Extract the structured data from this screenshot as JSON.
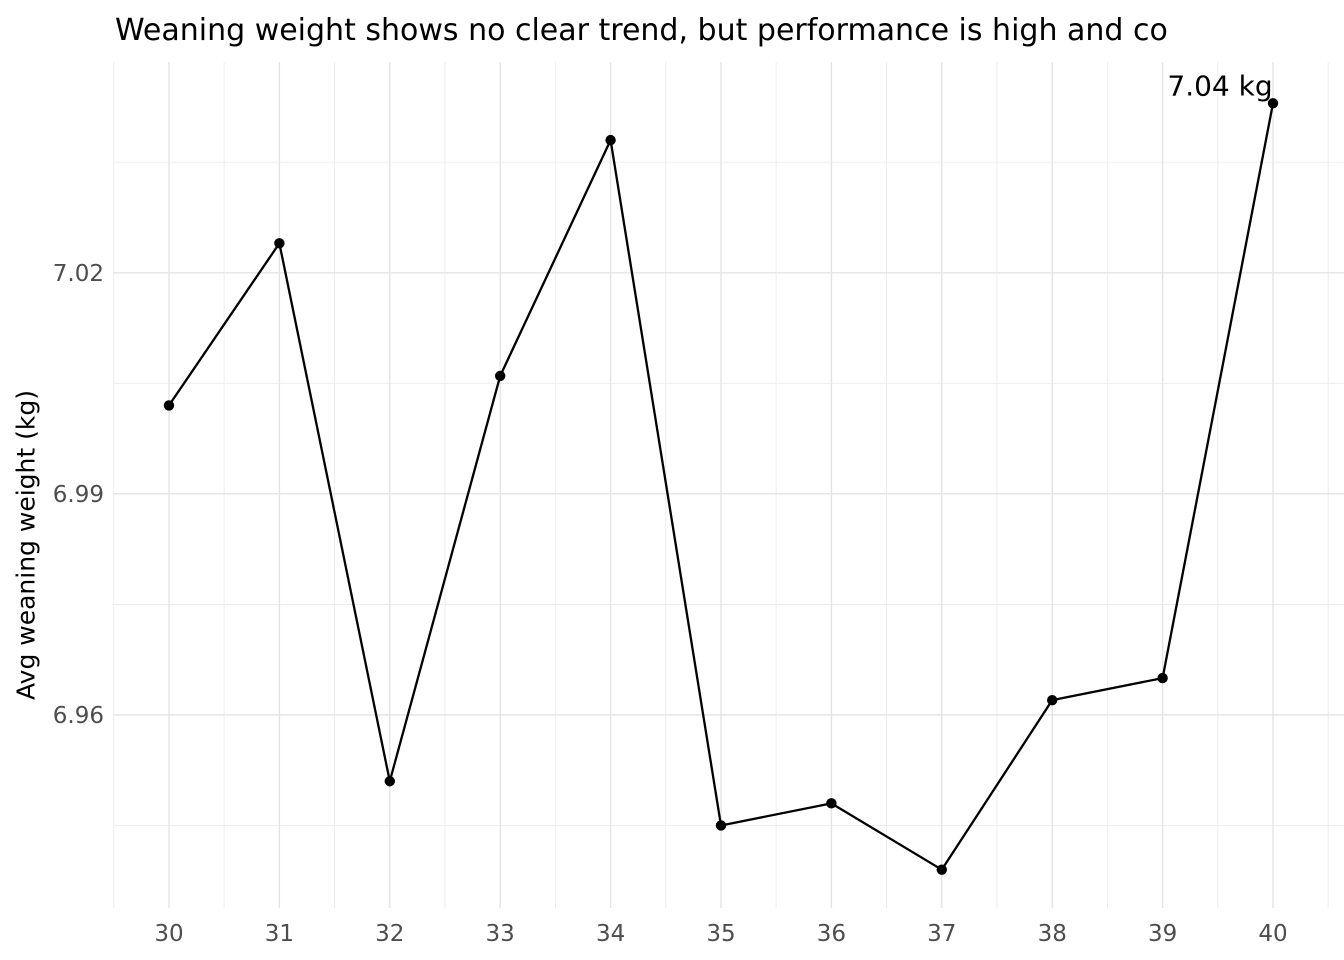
{
  "chart_data": {
    "type": "line",
    "title": "Weaning weight shows no clear trend, but performance is high and co",
    "xlabel": "",
    "ylabel": "Avg weaning weight (kg)",
    "x": [
      30,
      31,
      32,
      33,
      34,
      35,
      36,
      37,
      38,
      39,
      40
    ],
    "y": [
      7.002,
      7.024,
      6.951,
      7.006,
      7.038,
      6.945,
      6.948,
      6.939,
      6.962,
      6.965,
      7.043
    ],
    "x_tick_labels": [
      "30",
      "31",
      "32",
      "33",
      "34",
      "35",
      "36",
      "37",
      "38",
      "39",
      "40"
    ],
    "y_ticks": [
      6.96,
      6.99,
      7.02
    ],
    "y_tick_labels": [
      "6.96",
      "6.99",
      "7.02"
    ],
    "x_minor_ticks": [
      29.5,
      30.5,
      31.5,
      32.5,
      33.5,
      34.5,
      35.5,
      36.5,
      37.5,
      38.5,
      39.5,
      40.5
    ],
    "y_minor_ticks": [
      6.945,
      6.975,
      7.005,
      7.035
    ],
    "xlim": [
      29.493,
      40.643
    ],
    "ylim": [
      6.9338,
      7.0486
    ],
    "grid": "major and minor, no axis lines, white background",
    "legend": "none",
    "markers": true,
    "annotation": {
      "text": "7.04 kg",
      "x": 39.52,
      "y": 7.0454
    },
    "colors": {
      "series": "#000000",
      "grid_major": "#e4e4e4",
      "grid_minor": "#ececec",
      "tick_label": "#4d4d4d",
      "title": "#000000"
    }
  }
}
